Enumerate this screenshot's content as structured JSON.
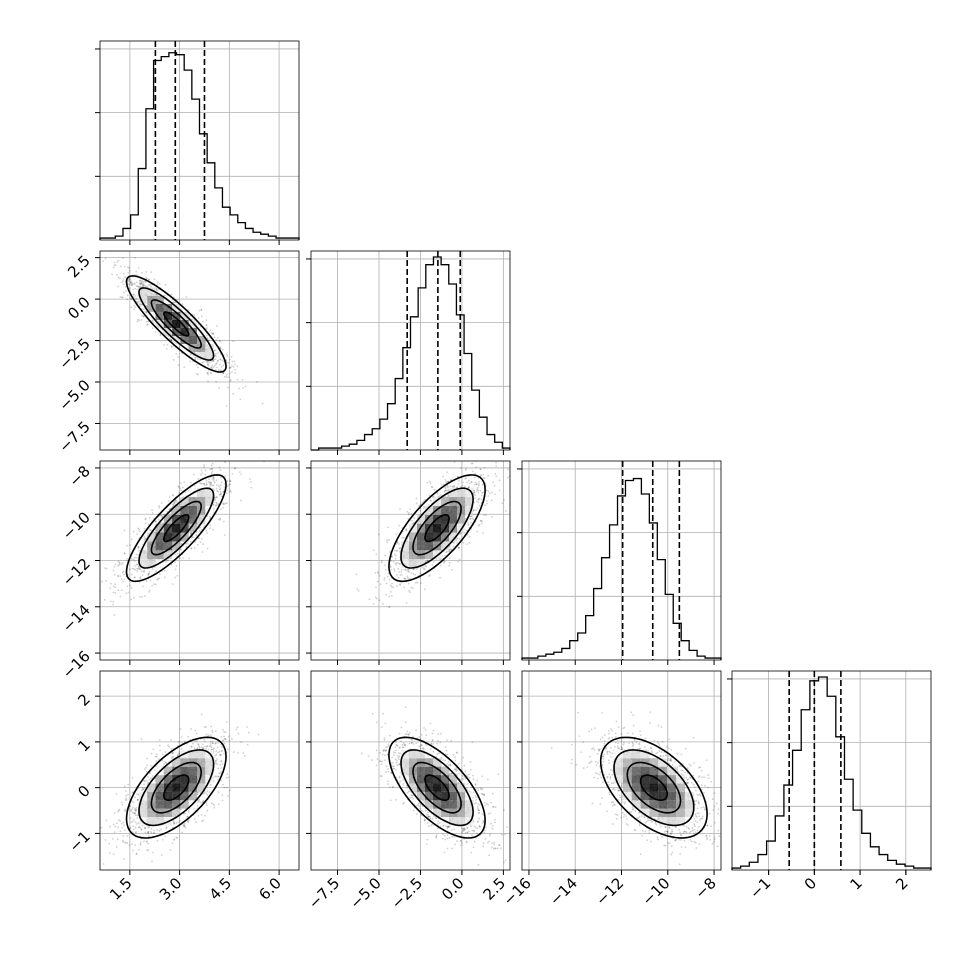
{
  "chart_data": {
    "type": "corner",
    "title": "",
    "grid": true,
    "params": [
      {
        "range": [
          0.6,
          6.6
        ],
        "ticks": [
          {
            "v": 1.5,
            "label": "1.5"
          },
          {
            "v": 3.0,
            "label": "3.0"
          },
          {
            "v": 4.5,
            "label": "4.5"
          },
          {
            "v": 6.0,
            "label": "6.0"
          }
        ]
      },
      {
        "range": [
          -9.1,
          2.9
        ],
        "ticks": [
          {
            "v": -7.5,
            "label": "−7.5"
          },
          {
            "v": -5.0,
            "label": "−5.0"
          },
          {
            "v": -2.5,
            "label": "−2.5"
          },
          {
            "v": 0.0,
            "label": "0.0"
          },
          {
            "v": 2.5,
            "label": "2.5"
          }
        ]
      },
      {
        "range": [
          -16.3,
          -7.7
        ],
        "ticks": [
          {
            "v": -16,
            "label": "−16"
          },
          {
            "v": -14,
            "label": "−14"
          },
          {
            "v": -12,
            "label": "−12"
          },
          {
            "v": -10,
            "label": "−10"
          },
          {
            "v": -8,
            "label": "−8"
          }
        ]
      },
      {
        "range": [
          -1.8,
          2.55
        ],
        "ticks": [
          {
            "v": -1,
            "label": "−1"
          },
          {
            "v": 0,
            "label": "0"
          },
          {
            "v": 1,
            "label": "1"
          },
          {
            "v": 2,
            "label": "2"
          }
        ]
      }
    ],
    "marginals": [
      {
        "quantiles": [
          2.27,
          2.87,
          3.75
        ],
        "counts": [
          0.01,
          0.01,
          0.02,
          0.06,
          0.13,
          0.37,
          0.68,
          0.93,
          0.95,
          0.97,
          0.96,
          0.88,
          0.73,
          0.55,
          0.4,
          0.27,
          0.17,
          0.13,
          0.09,
          0.06,
          0.04,
          0.03,
          0.02,
          0.01,
          0.01,
          0.01
        ]
      },
      {
        "quantiles": [
          -3.3,
          -1.45,
          -0.1
        ],
        "counts": [
          0.0,
          0.01,
          0.01,
          0.01,
          0.02,
          0.03,
          0.05,
          0.08,
          0.11,
          0.16,
          0.24,
          0.37,
          0.53,
          0.69,
          0.84,
          0.96,
          1.0,
          0.96,
          0.86,
          0.7,
          0.5,
          0.31,
          0.17,
          0.08,
          0.04,
          0.01
        ]
      },
      {
        "quantiles": [
          -11.95,
          -10.65,
          -9.5
        ],
        "counts": [
          0.01,
          0.01,
          0.02,
          0.03,
          0.04,
          0.06,
          0.1,
          0.14,
          0.23,
          0.37,
          0.53,
          0.7,
          0.85,
          0.93,
          0.94,
          0.86,
          0.71,
          0.52,
          0.34,
          0.19,
          0.1,
          0.05,
          0.02,
          0.01,
          0.01
        ]
      },
      {
        "quantiles": [
          -0.55,
          0.0,
          0.58
        ],
        "counts": [
          0.01,
          0.02,
          0.04,
          0.08,
          0.15,
          0.28,
          0.44,
          0.62,
          0.83,
          0.98,
          1.0,
          0.9,
          0.69,
          0.47,
          0.31,
          0.19,
          0.12,
          0.08,
          0.05,
          0.03,
          0.02,
          0.01,
          0.01
        ]
      }
    ],
    "joint": {
      "1-0": {
        "mean": [
          2.9,
          -1.5
        ],
        "sd": [
          0.75,
          1.45
        ],
        "rho": -0.88
      },
      "2-0": {
        "mean": [
          2.9,
          -10.6
        ],
        "sd": [
          0.75,
          1.15
        ],
        "rho": 0.82
      },
      "2-1": {
        "mean": [
          -1.5,
          -10.6
        ],
        "sd": [
          1.45,
          1.15
        ],
        "rho": 0.72
      },
      "3-0": {
        "mean": [
          2.9,
          0.0
        ],
        "sd": [
          0.75,
          0.55
        ],
        "rho": 0.62
      },
      "3-1": {
        "mean": [
          -1.5,
          0.0
        ],
        "sd": [
          1.45,
          0.55
        ],
        "rho": -0.65
      },
      "3-2": {
        "mean": [
          -10.6,
          0.0
        ],
        "sd": [
          1.15,
          0.55
        ],
        "rho": -0.52
      }
    },
    "contour_levels_sigma": [
      0.5,
      1.0,
      1.5,
      2.0
    ]
  }
}
